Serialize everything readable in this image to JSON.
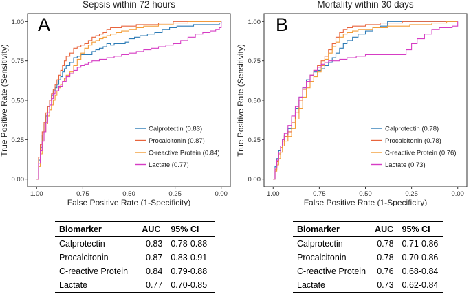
{
  "chart_data": [
    {
      "type": "line",
      "panel": "A",
      "title": "Sepsis within 72 hours",
      "xlabel": "False Positive Rate (1-Specificity)",
      "ylabel": "True Positive Rate (Sensitivity)",
      "xlim": [
        1.0,
        0.0
      ],
      "ylim": [
        0.0,
        1.0
      ],
      "x_ticks": [
        "1.00",
        "0.75",
        "0.50",
        "0.25",
        "0.00"
      ],
      "y_ticks": [
        "0.00",
        "0.25",
        "0.50",
        "0.75",
        "1.00"
      ],
      "legend_position": "bottom-right",
      "series": [
        {
          "name": "Calprotectin (0.83)",
          "color": "#2c7bb6",
          "x": [
            1.0,
            0.99,
            0.98,
            0.97,
            0.96,
            0.95,
            0.94,
            0.93,
            0.92,
            0.91,
            0.9,
            0.89,
            0.88,
            0.87,
            0.86,
            0.85,
            0.84,
            0.82,
            0.8,
            0.78,
            0.76,
            0.74,
            0.72,
            0.7,
            0.68,
            0.66,
            0.64,
            0.62,
            0.6,
            0.58,
            0.55,
            0.52,
            0.5,
            0.47,
            0.44,
            0.4,
            0.36,
            0.32,
            0.28,
            0.24,
            0.2,
            0.15,
            0.1,
            0.06,
            0.03,
            0.01,
            0.0
          ],
          "y": [
            0.0,
            0.12,
            0.2,
            0.28,
            0.35,
            0.4,
            0.46,
            0.5,
            0.53,
            0.56,
            0.58,
            0.6,
            0.63,
            0.65,
            0.68,
            0.7,
            0.72,
            0.74,
            0.77,
            0.78,
            0.79,
            0.79,
            0.79,
            0.81,
            0.82,
            0.83,
            0.84,
            0.86,
            0.85,
            0.86,
            0.86,
            0.87,
            0.89,
            0.9,
            0.91,
            0.92,
            0.93,
            0.95,
            0.96,
            0.97,
            0.97,
            0.98,
            0.98,
            0.98,
            0.98,
            0.99,
            1.0
          ]
        },
        {
          "name": "Procalcitonin (0.87)",
          "color": "#e8643c",
          "x": [
            1.0,
            0.99,
            0.98,
            0.97,
            0.96,
            0.95,
            0.94,
            0.93,
            0.92,
            0.91,
            0.9,
            0.89,
            0.88,
            0.87,
            0.86,
            0.85,
            0.84,
            0.82,
            0.8,
            0.78,
            0.76,
            0.74,
            0.72,
            0.7,
            0.68,
            0.66,
            0.64,
            0.62,
            0.6,
            0.57,
            0.54,
            0.5,
            0.46,
            0.42,
            0.38,
            0.34,
            0.3,
            0.26,
            0.22,
            0.18,
            0.14,
            0.1,
            0.06,
            0.03,
            0.0
          ],
          "y": [
            0.0,
            0.14,
            0.22,
            0.3,
            0.36,
            0.42,
            0.46,
            0.5,
            0.54,
            0.57,
            0.6,
            0.63,
            0.66,
            0.69,
            0.72,
            0.75,
            0.78,
            0.8,
            0.83,
            0.84,
            0.85,
            0.86,
            0.88,
            0.9,
            0.91,
            0.92,
            0.93,
            0.95,
            0.96,
            0.96,
            0.97,
            0.97,
            0.98,
            0.98,
            0.98,
            0.99,
            0.99,
            1.0,
            1.0,
            1.0,
            1.0,
            1.0,
            1.0,
            1.0,
            1.0
          ]
        },
        {
          "name": "C-reactive Protein (0.84)",
          "color": "#f39c36",
          "x": [
            1.0,
            0.99,
            0.98,
            0.97,
            0.96,
            0.95,
            0.94,
            0.93,
            0.92,
            0.91,
            0.9,
            0.89,
            0.88,
            0.87,
            0.86,
            0.85,
            0.84,
            0.82,
            0.8,
            0.78,
            0.76,
            0.74,
            0.72,
            0.7,
            0.68,
            0.66,
            0.64,
            0.62,
            0.6,
            0.57,
            0.54,
            0.5,
            0.46,
            0.42,
            0.38,
            0.34,
            0.3,
            0.26,
            0.22,
            0.18,
            0.14,
            0.1,
            0.06,
            0.03,
            0.0
          ],
          "y": [
            0.0,
            0.08,
            0.16,
            0.24,
            0.3,
            0.35,
            0.4,
            0.44,
            0.47,
            0.5,
            0.53,
            0.56,
            0.58,
            0.6,
            0.62,
            0.64,
            0.66,
            0.68,
            0.72,
            0.76,
            0.8,
            0.83,
            0.85,
            0.87,
            0.88,
            0.89,
            0.9,
            0.91,
            0.92,
            0.93,
            0.94,
            0.95,
            0.96,
            0.97,
            0.97,
            0.98,
            0.98,
            0.99,
            0.99,
            1.0,
            1.0,
            1.0,
            1.0,
            1.0,
            1.0
          ]
        },
        {
          "name": "Lactate (0.77)",
          "color": "#d63cc4",
          "x": [
            1.0,
            0.99,
            0.98,
            0.97,
            0.96,
            0.95,
            0.94,
            0.93,
            0.92,
            0.91,
            0.9,
            0.88,
            0.86,
            0.84,
            0.82,
            0.8,
            0.78,
            0.76,
            0.74,
            0.72,
            0.7,
            0.66,
            0.62,
            0.58,
            0.54,
            0.5,
            0.46,
            0.42,
            0.38,
            0.34,
            0.3,
            0.26,
            0.22,
            0.18,
            0.14,
            0.1,
            0.06,
            0.03,
            0.01,
            0.0
          ],
          "y": [
            0.0,
            0.1,
            0.18,
            0.24,
            0.3,
            0.36,
            0.42,
            0.47,
            0.51,
            0.54,
            0.56,
            0.59,
            0.62,
            0.65,
            0.67,
            0.69,
            0.71,
            0.72,
            0.73,
            0.74,
            0.75,
            0.76,
            0.77,
            0.78,
            0.79,
            0.8,
            0.81,
            0.82,
            0.83,
            0.84,
            0.85,
            0.86,
            0.88,
            0.9,
            0.92,
            0.93,
            0.94,
            0.95,
            0.96,
            1.0
          ]
        }
      ]
    },
    {
      "type": "line",
      "panel": "B",
      "title": "Mortality within 30 days",
      "xlabel": "False Positive Rate (1-Specificity)",
      "ylabel": "True Positive Rate (Sensitivity)",
      "xlim": [
        1.0,
        0.0
      ],
      "ylim": [
        0.0,
        1.0
      ],
      "x_ticks": [
        "1.00",
        "0.75",
        "0.50",
        "0.25",
        "0.00"
      ],
      "y_ticks": [
        "0.00",
        "0.25",
        "0.50",
        "0.75",
        "1.00"
      ],
      "legend_position": "bottom-right",
      "series": [
        {
          "name": "Calprotectin (0.78)",
          "color": "#2c7bb6",
          "x": [
            1.0,
            0.99,
            0.98,
            0.97,
            0.96,
            0.95,
            0.94,
            0.92,
            0.9,
            0.88,
            0.86,
            0.84,
            0.82,
            0.8,
            0.78,
            0.76,
            0.74,
            0.72,
            0.7,
            0.68,
            0.66,
            0.64,
            0.62,
            0.6,
            0.57,
            0.54,
            0.5,
            0.46,
            0.42,
            0.38,
            0.34,
            0.3,
            0.26,
            0.22,
            0.18,
            0.14,
            0.1,
            0.06,
            0.03,
            0.0
          ],
          "y": [
            0.0,
            0.08,
            0.13,
            0.18,
            0.21,
            0.25,
            0.28,
            0.32,
            0.38,
            0.45,
            0.52,
            0.58,
            0.63,
            0.66,
            0.68,
            0.69,
            0.7,
            0.72,
            0.74,
            0.77,
            0.8,
            0.83,
            0.86,
            0.88,
            0.9,
            0.92,
            0.94,
            0.96,
            0.97,
            1.0,
            1.0,
            1.0,
            1.0,
            1.0,
            1.0,
            1.0,
            1.0,
            1.0,
            1.0,
            1.0
          ]
        },
        {
          "name": "Procalcitonin (0.78)",
          "color": "#e8643c",
          "x": [
            1.0,
            0.99,
            0.98,
            0.97,
            0.96,
            0.95,
            0.94,
            0.92,
            0.9,
            0.88,
            0.86,
            0.84,
            0.82,
            0.8,
            0.78,
            0.76,
            0.74,
            0.72,
            0.7,
            0.68,
            0.66,
            0.64,
            0.62,
            0.6,
            0.57,
            0.54,
            0.5,
            0.46,
            0.42,
            0.38,
            0.34,
            0.3,
            0.26,
            0.22,
            0.18,
            0.14,
            0.1,
            0.06,
            0.03,
            0.0
          ],
          "y": [
            0.0,
            0.06,
            0.11,
            0.16,
            0.2,
            0.24,
            0.27,
            0.3,
            0.36,
            0.42,
            0.5,
            0.57,
            0.62,
            0.66,
            0.69,
            0.72,
            0.75,
            0.78,
            0.82,
            0.86,
            0.9,
            0.93,
            0.95,
            0.96,
            0.97,
            0.97,
            0.98,
            0.98,
            0.99,
            0.99,
            0.99,
            1.0,
            1.0,
            1.0,
            1.0,
            1.0,
            1.0,
            1.0,
            1.0,
            1.0
          ]
        },
        {
          "name": "C-reactive Protein (0.76)",
          "color": "#f39c36",
          "x": [
            1.0,
            0.99,
            0.98,
            0.97,
            0.96,
            0.95,
            0.94,
            0.92,
            0.9,
            0.88,
            0.86,
            0.84,
            0.82,
            0.8,
            0.78,
            0.76,
            0.74,
            0.72,
            0.7,
            0.68,
            0.66,
            0.64,
            0.62,
            0.6,
            0.57,
            0.54,
            0.5,
            0.46,
            0.42,
            0.38,
            0.34,
            0.3,
            0.26,
            0.22,
            0.18,
            0.14,
            0.1,
            0.06,
            0.03,
            0.0
          ],
          "y": [
            0.0,
            0.05,
            0.09,
            0.13,
            0.17,
            0.21,
            0.24,
            0.27,
            0.32,
            0.38,
            0.45,
            0.52,
            0.58,
            0.62,
            0.65,
            0.68,
            0.72,
            0.76,
            0.8,
            0.84,
            0.87,
            0.9,
            0.92,
            0.93,
            0.94,
            0.95,
            0.95,
            0.96,
            0.96,
            0.97,
            0.97,
            0.97,
            0.98,
            0.98,
            0.98,
            0.99,
            0.99,
            1.0,
            1.0,
            1.0
          ]
        },
        {
          "name": "Lactate (0.73)",
          "color": "#d63cc4",
          "x": [
            1.0,
            0.99,
            0.98,
            0.97,
            0.96,
            0.95,
            0.94,
            0.92,
            0.9,
            0.88,
            0.86,
            0.84,
            0.82,
            0.8,
            0.78,
            0.76,
            0.74,
            0.72,
            0.7,
            0.68,
            0.66,
            0.64,
            0.6,
            0.55,
            0.5,
            0.45,
            0.4,
            0.35,
            0.3,
            0.28,
            0.25,
            0.22,
            0.18,
            0.14,
            0.1,
            0.06,
            0.03,
            0.01,
            0.0
          ],
          "y": [
            0.0,
            0.07,
            0.12,
            0.17,
            0.21,
            0.25,
            0.29,
            0.34,
            0.4,
            0.46,
            0.52,
            0.58,
            0.62,
            0.66,
            0.69,
            0.71,
            0.73,
            0.74,
            0.75,
            0.75,
            0.75,
            0.76,
            0.77,
            0.78,
            0.79,
            0.79,
            0.79,
            0.79,
            0.79,
            0.82,
            0.86,
            0.89,
            0.92,
            0.95,
            0.96,
            0.96,
            0.97,
            0.97,
            1.0
          ]
        }
      ]
    }
  ],
  "tables": [
    {
      "headers": [
        "Biomarker",
        "AUC",
        "95% CI"
      ],
      "rows": [
        {
          "biomarker": "Calprotectin",
          "auc": "0.83",
          "ci": "0.78-0.88"
        },
        {
          "biomarker": "Procalcitonin",
          "auc": "0.87",
          "ci": "0.83-0.91"
        },
        {
          "biomarker": "C-reactive Protein",
          "auc": "0.84",
          "ci": "0.79-0.88"
        },
        {
          "biomarker": "Lactate",
          "auc": "0.77",
          "ci": "0.70-0.85"
        }
      ]
    },
    {
      "headers": [
        "Biomarker",
        "AUC",
        "95% CI"
      ],
      "rows": [
        {
          "biomarker": "Calprotectin",
          "auc": "0.78",
          "ci": "0.71-0.86"
        },
        {
          "biomarker": "Procalcitonin",
          "auc": "0.78",
          "ci": "0.70-0.86"
        },
        {
          "biomarker": "C-reactive Protein",
          "auc": "0.76",
          "ci": "0.68-0.84"
        },
        {
          "biomarker": "Lactate",
          "auc": "0.73",
          "ci": "0.62-0.84"
        }
      ]
    }
  ]
}
